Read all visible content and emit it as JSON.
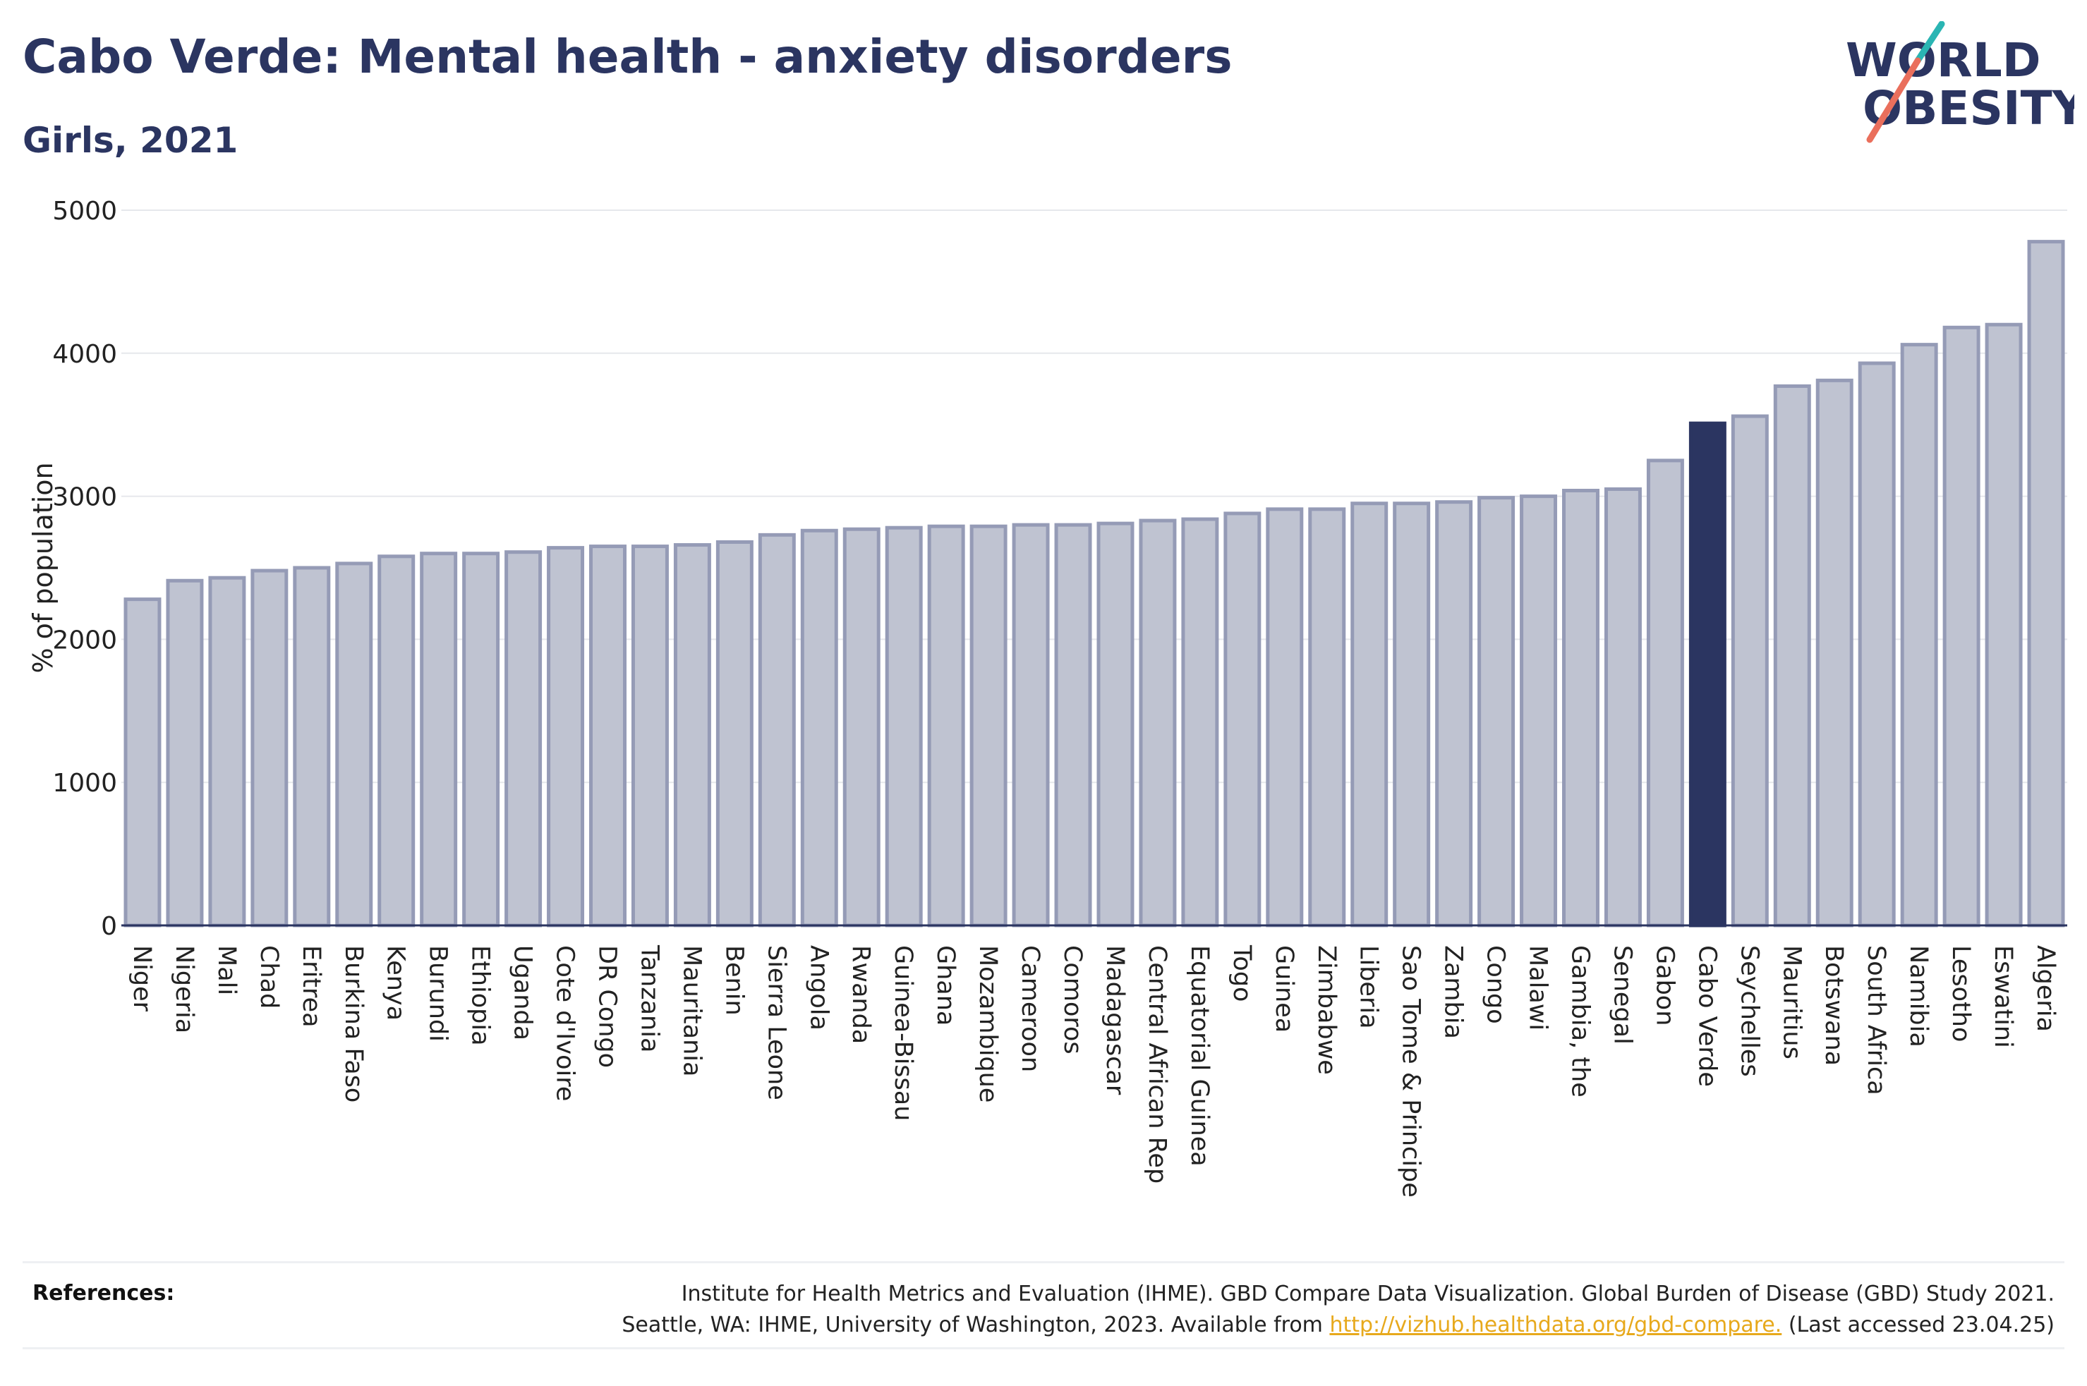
{
  "header": {
    "title": "Cabo Verde: Mental health - anxiety disorders",
    "subtitle": "Girls, 2021"
  },
  "logo": {
    "line1": "WORLD",
    "line2": "OBESITY"
  },
  "colors": {
    "highlight": "#2b3561",
    "bar_fill": "#bfc3d1",
    "bar_stroke": "#959bb6",
    "grid": "#e6e8ec",
    "accent_teal": "#2ab5b3",
    "accent_coral": "#ea6f5c",
    "link": "#e7a91c"
  },
  "chart_data": {
    "type": "bar",
    "title": "Cabo Verde: Mental health - anxiety disorders",
    "subtitle": "Girls, 2021",
    "ylabel": "% of population",
    "xlabel": "",
    "ylim": [
      0,
      5000
    ],
    "yticks": [
      0,
      1000,
      2000,
      3000,
      4000,
      5000
    ],
    "grid": true,
    "highlight": "Cabo Verde",
    "categories": [
      "Niger",
      "Nigeria",
      "Mali",
      "Chad",
      "Eritrea",
      "Burkina Faso",
      "Kenya",
      "Burundi",
      "Ethiopia",
      "Uganda",
      "Cote d'Ivoire",
      "DR Congo",
      "Tanzania",
      "Mauritania",
      "Benin",
      "Sierra Leone",
      "Angola",
      "Rwanda",
      "Guinea-Bissau",
      "Ghana",
      "Mozambique",
      "Cameroon",
      "Comoros",
      "Madagascar",
      "Central African Rep",
      "Equatorial Guinea",
      "Togo",
      "Guinea",
      "Zimbabwe",
      "Liberia",
      "Sao Tome & Principe",
      "Zambia",
      "Congo",
      "Malawi",
      "Gambia, the",
      "Senegal",
      "Gabon",
      "Cabo Verde",
      "Seychelles",
      "Mauritius",
      "Botswana",
      "South Africa",
      "Namibia",
      "Lesotho",
      "Eswatini",
      "Algeria"
    ],
    "values": [
      2280,
      2410,
      2430,
      2480,
      2500,
      2530,
      2580,
      2600,
      2600,
      2610,
      2640,
      2650,
      2650,
      2660,
      2680,
      2730,
      2760,
      2770,
      2780,
      2790,
      2790,
      2800,
      2800,
      2810,
      2830,
      2840,
      2880,
      2910,
      2910,
      2950,
      2950,
      2960,
      2990,
      3000,
      3040,
      3050,
      3250,
      3510,
      3560,
      3770,
      3810,
      3930,
      4060,
      4180,
      4200,
      4780
    ]
  },
  "references": {
    "label": "References:",
    "line1": "Institute for Health Metrics and Evaluation (IHME). GBD Compare Data Visualization. Global Burden of Disease (GBD) Study 2021.",
    "line2_before": "Seattle, WA: IHME, University of Washington, 2023. Available from ",
    "link": "http://vizhub.healthdata.org/gbd-compare.",
    "line2_after": " (Last accessed 23.04.25)"
  }
}
